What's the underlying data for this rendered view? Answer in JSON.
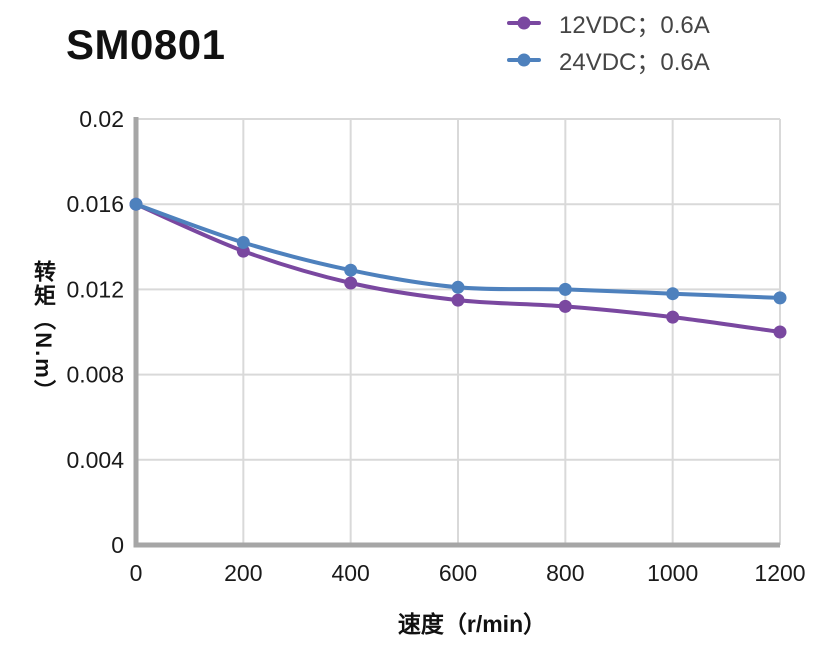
{
  "header": {
    "title": "SM0801"
  },
  "chart_data": {
    "type": "line",
    "title": "SM0801",
    "xlabel": "速度（r/min）",
    "ylabel": "转矩（N.m）",
    "x": [
      0,
      200,
      400,
      600,
      800,
      1000,
      1200
    ],
    "series": [
      {
        "name": "12VDC；0.6A",
        "color": "#7A48A0",
        "values": [
          0.016,
          0.0138,
          0.0123,
          0.0115,
          0.0112,
          0.0107,
          0.01
        ]
      },
      {
        "name": "24VDC；0.6A",
        "color": "#4E81BD",
        "values": [
          0.016,
          0.0142,
          0.0129,
          0.0121,
          0.012,
          0.0118,
          0.0116
        ]
      }
    ],
    "xlim": [
      0,
      1200
    ],
    "ylim": [
      0,
      0.02
    ],
    "x_tick_labels": [
      "0",
      "200",
      "400",
      "600",
      "800",
      "1000",
      "1200"
    ],
    "y_ticks": [
      0,
      0.004,
      0.008,
      0.012,
      0.016,
      0.02
    ],
    "y_tick_labels": [
      "0",
      "0.004",
      "0.008",
      "0.012",
      "0.016",
      "0.02"
    ],
    "grid": true,
    "legend_position": "top-right",
    "marker": "circle",
    "colors": {
      "gridline": "#d9d9d9",
      "axis": "#a6a6a6",
      "tick_text": "#1a1a1a",
      "legend_text": "#454545",
      "title_text": "#111111"
    }
  }
}
